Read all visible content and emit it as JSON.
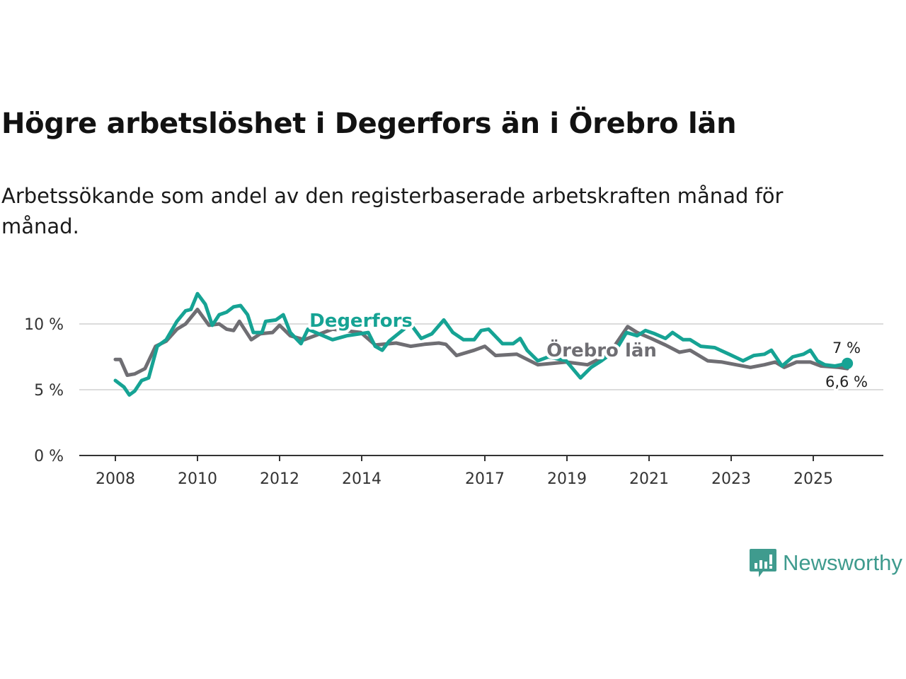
{
  "title": "Högre arbetslöshet i Degerfors än i Örebro län",
  "subtitle": "Arbetssökande som andel av den registerbaserade arbetskraften månad för månad.",
  "logo": {
    "text": "Newsworthy",
    "icon": "bar-chart-speech-bubble-icon",
    "color": "#3f9b8e"
  },
  "chart_data": {
    "type": "line",
    "title": "Högre arbetslöshet i Degerfors än i Örebro län",
    "xlabel": "",
    "ylabel": "",
    "xlim": [
      2007.75,
      2026.4
    ],
    "ylim": [
      0,
      12.5
    ],
    "x_ticks": [
      2008,
      2010,
      2012,
      2014,
      2017,
      2019,
      2021,
      2023,
      2025
    ],
    "x_tick_labels": [
      "2008",
      "2010",
      "2012",
      "2014",
      "2017",
      "2019",
      "2021",
      "2023",
      "2025"
    ],
    "y_ticks": [
      0,
      5,
      10
    ],
    "y_tick_labels": [
      "0 %",
      "5 %",
      "10 %"
    ],
    "grid": true,
    "series": [
      {
        "name": "Örebro län",
        "label": "Örebro län",
        "color": "#6f6e73",
        "end_label": "6,6 %",
        "points": [
          [
            2008.0,
            7.3
          ],
          [
            2008.12,
            7.3
          ],
          [
            2008.29,
            6.1
          ],
          [
            2008.47,
            6.2
          ],
          [
            2008.72,
            6.6
          ],
          [
            2008.98,
            8.3
          ],
          [
            2009.24,
            8.7
          ],
          [
            2009.5,
            9.6
          ],
          [
            2009.71,
            10.0
          ],
          [
            2010.0,
            11.1
          ],
          [
            2010.28,
            9.9
          ],
          [
            2010.53,
            10.0
          ],
          [
            2010.71,
            9.6
          ],
          [
            2010.88,
            9.5
          ],
          [
            2011.02,
            10.2
          ],
          [
            2011.31,
            8.8
          ],
          [
            2011.53,
            9.25
          ],
          [
            2011.83,
            9.35
          ],
          [
            2012.0,
            9.9
          ],
          [
            2012.26,
            9.1
          ],
          [
            2012.6,
            8.8
          ],
          [
            2013.29,
            9.6
          ],
          [
            2013.98,
            9.35
          ],
          [
            2014.33,
            8.4
          ],
          [
            2014.84,
            8.55
          ],
          [
            2015.19,
            8.3
          ],
          [
            2015.53,
            8.45
          ],
          [
            2015.88,
            8.55
          ],
          [
            2016.05,
            8.45
          ],
          [
            2016.31,
            7.6
          ],
          [
            2016.74,
            8.0
          ],
          [
            2017.0,
            8.3
          ],
          [
            2017.26,
            7.6
          ],
          [
            2017.78,
            7.7
          ],
          [
            2018.29,
            6.9
          ],
          [
            2018.98,
            7.1
          ],
          [
            2019.5,
            6.9
          ],
          [
            2020.02,
            7.7
          ],
          [
            2020.48,
            9.8
          ],
          [
            2020.71,
            9.35
          ],
          [
            2021.05,
            8.9
          ],
          [
            2021.4,
            8.4
          ],
          [
            2021.74,
            7.85
          ],
          [
            2022.0,
            8.0
          ],
          [
            2022.43,
            7.2
          ],
          [
            2022.78,
            7.1
          ],
          [
            2023.12,
            6.9
          ],
          [
            2023.47,
            6.7
          ],
          [
            2023.81,
            6.9
          ],
          [
            2024.07,
            7.1
          ],
          [
            2024.29,
            6.7
          ],
          [
            2024.59,
            7.1
          ],
          [
            2024.93,
            7.1
          ],
          [
            2025.19,
            6.8
          ],
          [
            2025.62,
            6.7
          ],
          [
            2025.83,
            6.6
          ]
        ]
      },
      {
        "name": "Degerfors",
        "label": "Degerfors",
        "color": "#16a394",
        "end_label": "7 %",
        "points": [
          [
            2008.0,
            5.7
          ],
          [
            2008.21,
            5.2
          ],
          [
            2008.34,
            4.6
          ],
          [
            2008.47,
            4.9
          ],
          [
            2008.64,
            5.7
          ],
          [
            2008.81,
            5.9
          ],
          [
            2009.02,
            8.3
          ],
          [
            2009.24,
            8.8
          ],
          [
            2009.5,
            10.2
          ],
          [
            2009.71,
            11.0
          ],
          [
            2009.84,
            11.1
          ],
          [
            2010.0,
            12.3
          ],
          [
            2010.19,
            11.5
          ],
          [
            2010.36,
            9.9
          ],
          [
            2010.53,
            10.7
          ],
          [
            2010.71,
            10.9
          ],
          [
            2010.88,
            11.3
          ],
          [
            2011.05,
            11.4
          ],
          [
            2011.22,
            10.7
          ],
          [
            2011.36,
            9.35
          ],
          [
            2011.57,
            9.35
          ],
          [
            2011.66,
            10.2
          ],
          [
            2011.91,
            10.3
          ],
          [
            2012.09,
            10.7
          ],
          [
            2012.26,
            9.35
          ],
          [
            2012.52,
            8.5
          ],
          [
            2012.69,
            9.6
          ],
          [
            2013.29,
            8.8
          ],
          [
            2013.64,
            9.1
          ],
          [
            2014.16,
            9.35
          ],
          [
            2014.33,
            8.3
          ],
          [
            2014.5,
            8.0
          ],
          [
            2014.67,
            8.7
          ],
          [
            2014.93,
            9.35
          ],
          [
            2015.19,
            10.0
          ],
          [
            2015.45,
            8.9
          ],
          [
            2015.71,
            9.25
          ],
          [
            2016.0,
            10.3
          ],
          [
            2016.22,
            9.35
          ],
          [
            2016.48,
            8.8
          ],
          [
            2016.74,
            8.8
          ],
          [
            2016.91,
            9.5
          ],
          [
            2017.09,
            9.6
          ],
          [
            2017.43,
            8.5
          ],
          [
            2017.69,
            8.5
          ],
          [
            2017.86,
            8.9
          ],
          [
            2018.03,
            8.0
          ],
          [
            2018.29,
            7.2
          ],
          [
            2018.55,
            7.5
          ],
          [
            2018.98,
            7.2
          ],
          [
            2019.33,
            5.9
          ],
          [
            2019.59,
            6.7
          ],
          [
            2019.84,
            7.2
          ],
          [
            2020.19,
            8.0
          ],
          [
            2020.45,
            9.35
          ],
          [
            2020.71,
            9.1
          ],
          [
            2020.91,
            9.5
          ],
          [
            2021.14,
            9.25
          ],
          [
            2021.4,
            8.9
          ],
          [
            2021.57,
            9.35
          ],
          [
            2021.83,
            8.8
          ],
          [
            2022.0,
            8.8
          ],
          [
            2022.26,
            8.3
          ],
          [
            2022.6,
            8.2
          ],
          [
            2022.95,
            7.7
          ],
          [
            2023.29,
            7.2
          ],
          [
            2023.55,
            7.6
          ],
          [
            2023.81,
            7.7
          ],
          [
            2023.98,
            8.0
          ],
          [
            2024.24,
            6.8
          ],
          [
            2024.5,
            7.5
          ],
          [
            2024.76,
            7.7
          ],
          [
            2024.93,
            8.0
          ],
          [
            2025.1,
            7.2
          ],
          [
            2025.28,
            6.9
          ],
          [
            2025.53,
            6.8
          ],
          [
            2025.83,
            7.0
          ]
        ]
      }
    ]
  }
}
